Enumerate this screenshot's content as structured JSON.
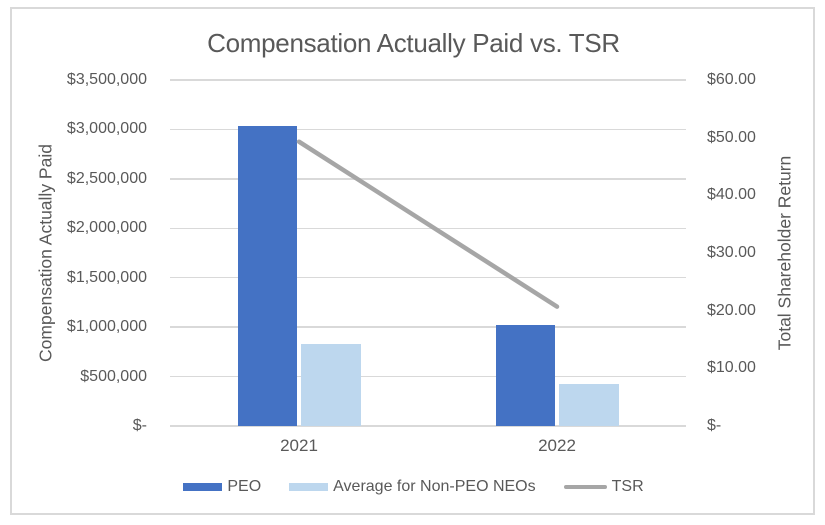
{
  "chart_data": {
    "type": "bar",
    "subtype": "clustered-column-with-line-combo",
    "title": "Compensation Actually Paid vs. TSR",
    "categories": [
      "2021",
      "2022"
    ],
    "series": [
      {
        "name": "PEO",
        "type": "bar",
        "axis": "primary",
        "color": "#4472C4",
        "values": [
          3030000,
          1025000
        ]
      },
      {
        "name": "Average for Non-PEO NEOs",
        "type": "bar",
        "axis": "primary",
        "color": "#BDD7EE",
        "values": [
          830000,
          420000
        ]
      },
      {
        "name": "TSR",
        "type": "line",
        "axis": "secondary",
        "color": "#A6A6A6",
        "values": [
          49.3,
          20.7
        ]
      }
    ],
    "y_axis_left": {
      "title": "Compensation Actually Paid",
      "min": 0,
      "max": 3500000,
      "step": 500000,
      "tick_labels": [
        "$-",
        "$500,000",
        "$1,000,000",
        "$1,500,000",
        "$2,000,000",
        "$2,500,000",
        "$3,000,000",
        "$3,500,000"
      ]
    },
    "y_axis_right": {
      "title": "Total Shareholder Return",
      "min": 0,
      "max": 60,
      "step": 10,
      "tick_labels": [
        "$-",
        "$10.00",
        "$20.00",
        "$30.00",
        "$40.00",
        "$50.00",
        "$60.00"
      ]
    },
    "legend_position": "bottom",
    "grid": true,
    "colors": {
      "grid": "#D9D9D9",
      "text": "#595959",
      "frame_border": "#D9D9D9",
      "background": "#FFFFFF"
    }
  }
}
